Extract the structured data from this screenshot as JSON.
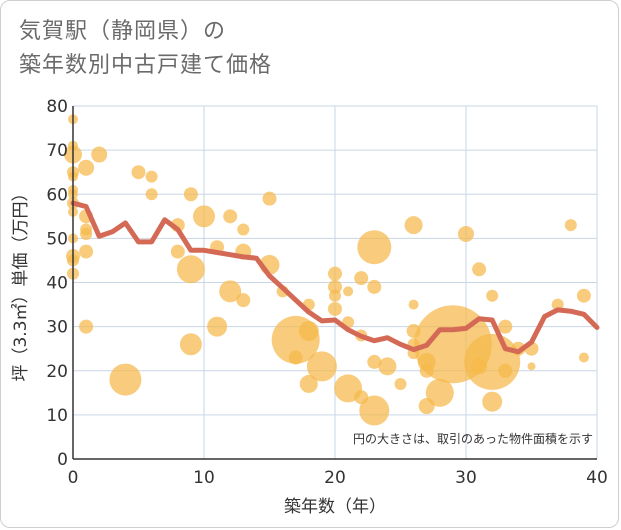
{
  "title_lines": [
    "気賀駅（静岡県）の",
    "築年数別中古戸建て価格"
  ],
  "colors": {
    "bubble": "#f5b94a",
    "line": "#d46a55",
    "grid": "#c9d6e6",
    "axis": "#333333"
  },
  "chart_data": {
    "type": "scatter",
    "title": "気賀駅（静岡県）の築年数別中古戸建て価格",
    "xlabel": "築年数（年）",
    "ylabel": "坪（3.3㎡）単価（万円）",
    "xlim": [
      0,
      40
    ],
    "ylim": [
      0,
      80
    ],
    "xticks": [
      0,
      10,
      20,
      30,
      40
    ],
    "yticks": [
      0,
      10,
      20,
      30,
      40,
      50,
      60,
      70,
      80
    ],
    "grid": true,
    "note": "円の大きさは、取引のあった物件面積を示す",
    "bubbles": [
      {
        "x": 0,
        "y": 77,
        "s": 5
      },
      {
        "x": 0,
        "y": 71,
        "s": 5
      },
      {
        "x": 0,
        "y": 69,
        "s": 9
      },
      {
        "x": 0,
        "y": 65,
        "s": 6
      },
      {
        "x": 0,
        "y": 64,
        "s": 5
      },
      {
        "x": 0,
        "y": 61,
        "s": 5
      },
      {
        "x": 0,
        "y": 60,
        "s": 5
      },
      {
        "x": 0,
        "y": 58,
        "s": 6
      },
      {
        "x": 0,
        "y": 56,
        "s": 5
      },
      {
        "x": 0,
        "y": 50,
        "s": 5
      },
      {
        "x": 0,
        "y": 46,
        "s": 7
      },
      {
        "x": 0,
        "y": 45,
        "s": 6
      },
      {
        "x": 0,
        "y": 42,
        "s": 6
      },
      {
        "x": 1,
        "y": 66,
        "s": 8
      },
      {
        "x": 1,
        "y": 55,
        "s": 7
      },
      {
        "x": 1,
        "y": 52,
        "s": 6
      },
      {
        "x": 1,
        "y": 51,
        "s": 6
      },
      {
        "x": 1,
        "y": 47,
        "s": 7
      },
      {
        "x": 1,
        "y": 30,
        "s": 7
      },
      {
        "x": 2,
        "y": 69,
        "s": 8
      },
      {
        "x": 4,
        "y": 18,
        "s": 16
      },
      {
        "x": 5,
        "y": 65,
        "s": 7
      },
      {
        "x": 6,
        "y": 64,
        "s": 6
      },
      {
        "x": 6,
        "y": 60,
        "s": 6
      },
      {
        "x": 8,
        "y": 53,
        "s": 7
      },
      {
        "x": 8,
        "y": 47,
        "s": 7
      },
      {
        "x": 9,
        "y": 60,
        "s": 7
      },
      {
        "x": 9,
        "y": 43,
        "s": 14
      },
      {
        "x": 9,
        "y": 26,
        "s": 11
      },
      {
        "x": 10,
        "y": 55,
        "s": 11
      },
      {
        "x": 11,
        "y": 48,
        "s": 7
      },
      {
        "x": 11,
        "y": 30,
        "s": 10
      },
      {
        "x": 12,
        "y": 55,
        "s": 7
      },
      {
        "x": 12,
        "y": 38,
        "s": 11
      },
      {
        "x": 13,
        "y": 52,
        "s": 6
      },
      {
        "x": 13,
        "y": 47,
        "s": 8
      },
      {
        "x": 13,
        "y": 36,
        "s": 7
      },
      {
        "x": 15,
        "y": 59,
        "s": 7
      },
      {
        "x": 15,
        "y": 44,
        "s": 10
      },
      {
        "x": 16,
        "y": 38,
        "s": 6
      },
      {
        "x": 17,
        "y": 27,
        "s": 24
      },
      {
        "x": 17,
        "y": 23,
        "s": 7
      },
      {
        "x": 18,
        "y": 35,
        "s": 6
      },
      {
        "x": 18,
        "y": 29,
        "s": 10
      },
      {
        "x": 18,
        "y": 17,
        "s": 9
      },
      {
        "x": 19,
        "y": 21,
        "s": 15
      },
      {
        "x": 20,
        "y": 42,
        "s": 7
      },
      {
        "x": 20,
        "y": 39,
        "s": 7
      },
      {
        "x": 20,
        "y": 37,
        "s": 6
      },
      {
        "x": 20,
        "y": 34,
        "s": 7
      },
      {
        "x": 21,
        "y": 38,
        "s": 5
      },
      {
        "x": 21,
        "y": 31,
        "s": 6
      },
      {
        "x": 21,
        "y": 16,
        "s": 14
      },
      {
        "x": 22,
        "y": 41,
        "s": 7
      },
      {
        "x": 22,
        "y": 28,
        "s": 6
      },
      {
        "x": 22,
        "y": 14,
        "s": 7
      },
      {
        "x": 23,
        "y": 48,
        "s": 17
      },
      {
        "x": 23,
        "y": 39,
        "s": 7
      },
      {
        "x": 23,
        "y": 22,
        "s": 7
      },
      {
        "x": 23,
        "y": 11,
        "s": 15
      },
      {
        "x": 24,
        "y": 21,
        "s": 9
      },
      {
        "x": 25,
        "y": 17,
        "s": 6
      },
      {
        "x": 26,
        "y": 53,
        "s": 9
      },
      {
        "x": 26,
        "y": 35,
        "s": 5
      },
      {
        "x": 26,
        "y": 29,
        "s": 7
      },
      {
        "x": 26,
        "y": 26,
        "s": 6
      },
      {
        "x": 26,
        "y": 24,
        "s": 6
      },
      {
        "x": 27,
        "y": 22,
        "s": 9
      },
      {
        "x": 27,
        "y": 20,
        "s": 7
      },
      {
        "x": 27,
        "y": 12,
        "s": 8
      },
      {
        "x": 28,
        "y": 15,
        "s": 14
      },
      {
        "x": 29,
        "y": 26,
        "s": 39
      },
      {
        "x": 30,
        "y": 51,
        "s": 8
      },
      {
        "x": 31,
        "y": 43,
        "s": 7
      },
      {
        "x": 31,
        "y": 21,
        "s": 8
      },
      {
        "x": 32,
        "y": 37,
        "s": 6
      },
      {
        "x": 32,
        "y": 22,
        "s": 28
      },
      {
        "x": 32,
        "y": 13,
        "s": 10
      },
      {
        "x": 33,
        "y": 30,
        "s": 7
      },
      {
        "x": 33,
        "y": 20,
        "s": 7
      },
      {
        "x": 34,
        "y": 25,
        "s": 7
      },
      {
        "x": 35,
        "y": 25,
        "s": 7
      },
      {
        "x": 35,
        "y": 21,
        "s": 4
      },
      {
        "x": 37,
        "y": 35,
        "s": 6
      },
      {
        "x": 38,
        "y": 53,
        "s": 6
      },
      {
        "x": 39,
        "y": 37,
        "s": 7
      },
      {
        "x": 39,
        "y": 23,
        "s": 5
      }
    ],
    "series": [
      {
        "type": "line",
        "x": [
          0,
          1,
          2,
          3,
          4,
          5,
          6,
          7,
          8,
          9,
          10,
          11,
          12,
          13,
          14,
          15,
          16,
          17,
          18,
          19,
          20,
          21,
          22,
          23,
          24,
          25,
          26,
          27,
          28,
          29,
          30,
          31,
          32,
          33,
          34,
          35,
          36,
          37,
          38,
          39,
          40
        ],
        "values": [
          58,
          57.2,
          50.5,
          51.5,
          53.5,
          49.2,
          49.2,
          54.2,
          52,
          47.3,
          47.3,
          46.8,
          46.3,
          45.8,
          45.5,
          41.5,
          38.8,
          36,
          33.3,
          31.3,
          31.5,
          29.3,
          27.8,
          26.8,
          27.5,
          26,
          24.8,
          25.8,
          29.3,
          29.3,
          29.6,
          31.8,
          31.5,
          25,
          24.3,
          26.5,
          32.3,
          33.8,
          33.5,
          32.8,
          29.8
        ]
      }
    ]
  }
}
